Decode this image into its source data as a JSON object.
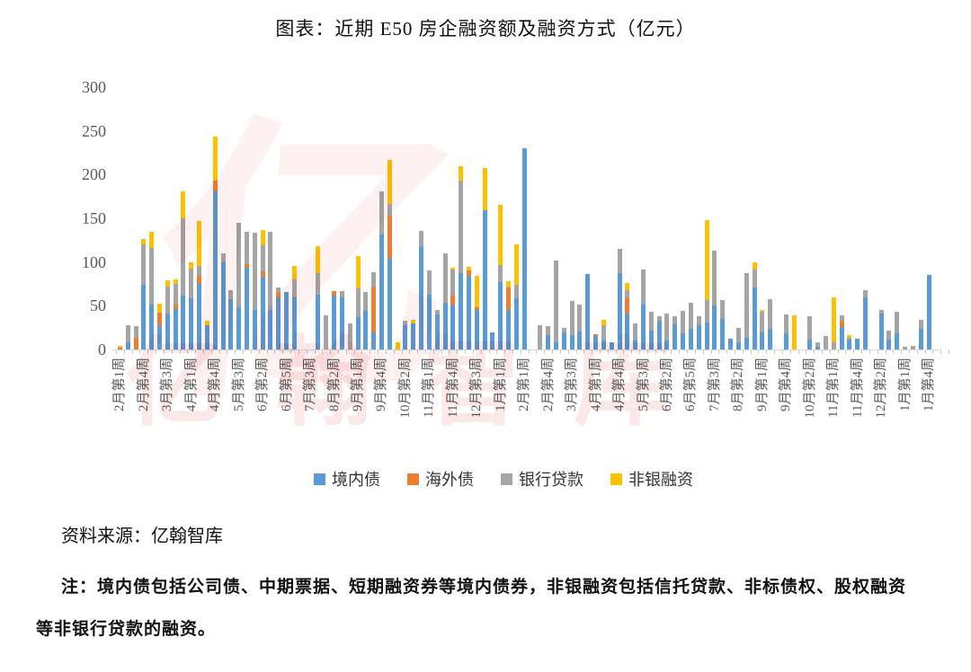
{
  "page": {
    "title": "图表：近期 E50 房企融资额及融资方式（亿元）",
    "source_line": "资料来源：亿翰智库",
    "note_line": "注：境内债包括公司债、中期票据、短期融资券等境内债券，非银融资包括信托贷款、非标债权、股权融资等非银行贷款的融资。",
    "watermark_logo": "亿",
    "watermark_text": "亿翰智库"
  },
  "chart_data": {
    "type": "bar",
    "stacked": true,
    "title": "近期E50房企融资额及融资方式（亿元）",
    "unit": "亿元",
    "ylim": [
      0,
      300
    ],
    "yticks": [
      0,
      50,
      100,
      150,
      200,
      250,
      300
    ],
    "grid": false,
    "legend_position": "bottom",
    "series_names": [
      "境内债",
      "海外债",
      "银行贷款",
      "非银融资"
    ],
    "series_colors": [
      "#5B9BD5",
      "#ED7D31",
      "#A5A5A5",
      "#FFC000"
    ],
    "x_tick_labels": [
      "2月第1周",
      "2月第4周",
      "3月第3周",
      "4月第1周",
      "4月第4周",
      "5月第3周",
      "6月第2周",
      "6月第5周",
      "7月第3周",
      "8月第2周",
      "9月第1周",
      "9月第4周",
      "10月第2周",
      "11月第1周",
      "11月第4周",
      "12月第3周",
      "1月第1周",
      "2月第1周",
      "2月第4周",
      "3月第3周",
      "4月第1周",
      "4月第4周",
      "5月第3周",
      "6月第2周",
      "6月第5周",
      "7月第3周",
      "8月第2周",
      "9月第1周",
      "9月第4周",
      "10月第2周",
      "11月第1周",
      "11月第4周",
      "12月第2周",
      "1月第1周",
      "1月第4周"
    ],
    "bars_per_tick": 3,
    "bars": [
      [
        0,
        2,
        0,
        2
      ],
      [
        8,
        0,
        20,
        0
      ],
      [
        0,
        13,
        14,
        0
      ],
      [
        74,
        0,
        46,
        6
      ],
      [
        51,
        0,
        65,
        19
      ],
      [
        28,
        14,
        0,
        10
      ],
      [
        41,
        0,
        31,
        7
      ],
      [
        46,
        5,
        24,
        5
      ],
      [
        62,
        0,
        88,
        31
      ],
      [
        59,
        0,
        33,
        8
      ],
      [
        75,
        9,
        12,
        51
      ],
      [
        28,
        0,
        0,
        5
      ],
      [
        181,
        12,
        0,
        50
      ],
      [
        100,
        0,
        10,
        0
      ],
      [
        58,
        0,
        10,
        0
      ],
      [
        48,
        0,
        97,
        0
      ],
      [
        93,
        5,
        37,
        0
      ],
      [
        45,
        0,
        89,
        0
      ],
      [
        83,
        6,
        30,
        18
      ],
      [
        45,
        0,
        90,
        0
      ],
      [
        60,
        5,
        6,
        0
      ],
      [
        66,
        0,
        0,
        0
      ],
      [
        60,
        0,
        20,
        16
      ],
      [
        0,
        0,
        0,
        0
      ],
      [
        0,
        0,
        0,
        0
      ],
      [
        63,
        0,
        24,
        31
      ],
      [
        0,
        0,
        39,
        0
      ],
      [
        62,
        5,
        0,
        0
      ],
      [
        60,
        0,
        7,
        0
      ],
      [
        0,
        0,
        30,
        0
      ],
      [
        37,
        0,
        33,
        37
      ],
      [
        44,
        0,
        22,
        0
      ],
      [
        20,
        52,
        16,
        0
      ],
      [
        132,
        0,
        49,
        0
      ],
      [
        105,
        48,
        13,
        51
      ],
      [
        0,
        0,
        0,
        8
      ],
      [
        28,
        0,
        5,
        0
      ],
      [
        30,
        0,
        0,
        4
      ],
      [
        117,
        0,
        19,
        0
      ],
      [
        63,
        0,
        27,
        0
      ],
      [
        40,
        0,
        5,
        0
      ],
      [
        53,
        0,
        57,
        0
      ],
      [
        51,
        11,
        29,
        3
      ],
      [
        87,
        0,
        106,
        17
      ],
      [
        84,
        6,
        0,
        5
      ],
      [
        45,
        3,
        0,
        36
      ],
      [
        159,
        0,
        0,
        49
      ],
      [
        20,
        0,
        0,
        0
      ],
      [
        77,
        0,
        20,
        68
      ],
      [
        45,
        26,
        0,
        7
      ],
      [
        59,
        0,
        15,
        46
      ],
      [
        230,
        0,
        0,
        0
      ],
      [
        0,
        0,
        0,
        0
      ],
      [
        0,
        0,
        28,
        0
      ],
      [
        16,
        0,
        11,
        0
      ],
      [
        8,
        0,
        94,
        0
      ],
      [
        20,
        0,
        5,
        0
      ],
      [
        16,
        0,
        40,
        0
      ],
      [
        21,
        0,
        30,
        0
      ],
      [
        86,
        0,
        0,
        0
      ],
      [
        15,
        2,
        0,
        0
      ],
      [
        10,
        0,
        18,
        6
      ],
      [
        8,
        0,
        0,
        0
      ],
      [
        87,
        0,
        28,
        0
      ],
      [
        41,
        19,
        8,
        8
      ],
      [
        10,
        0,
        20,
        0
      ],
      [
        51,
        0,
        40,
        0
      ],
      [
        22,
        0,
        21,
        0
      ],
      [
        33,
        0,
        5,
        0
      ],
      [
        10,
        0,
        31,
        0
      ],
      [
        29,
        0,
        9,
        0
      ],
      [
        19,
        0,
        25,
        0
      ],
      [
        24,
        0,
        29,
        0
      ],
      [
        28,
        0,
        10,
        0
      ],
      [
        31,
        0,
        26,
        91
      ],
      [
        50,
        0,
        63,
        0
      ],
      [
        35,
        0,
        21,
        0
      ],
      [
        12,
        0,
        0,
        0
      ],
      [
        8,
        0,
        17,
        0
      ],
      [
        13,
        0,
        74,
        0
      ],
      [
        71,
        0,
        20,
        9
      ],
      [
        20,
        0,
        23,
        2
      ],
      [
        24,
        0,
        34,
        0
      ],
      [
        0,
        0,
        0,
        0
      ],
      [
        19,
        0,
        21,
        0
      ],
      [
        0,
        0,
        0,
        39
      ],
      [
        0,
        0,
        0,
        0
      ],
      [
        11,
        0,
        27,
        0
      ],
      [
        3,
        0,
        5,
        0
      ],
      [
        0,
        0,
        15,
        0
      ],
      [
        0,
        0,
        8,
        52
      ],
      [
        26,
        7,
        6,
        0
      ],
      [
        11,
        0,
        2,
        3
      ],
      [
        12,
        0,
        0,
        0
      ],
      [
        60,
        0,
        8,
        0
      ],
      [
        0,
        0,
        0,
        0
      ],
      [
        41,
        0,
        4,
        0
      ],
      [
        11,
        0,
        11,
        0
      ],
      [
        19,
        0,
        24,
        0
      ],
      [
        0,
        0,
        3,
        0
      ],
      [
        0,
        0,
        4,
        0
      ],
      [
        24,
        0,
        10,
        0
      ],
      [
        85,
        0,
        0,
        0
      ],
      [
        0,
        0,
        0,
        0
      ],
      [
        0,
        0,
        0,
        0
      ]
    ]
  }
}
